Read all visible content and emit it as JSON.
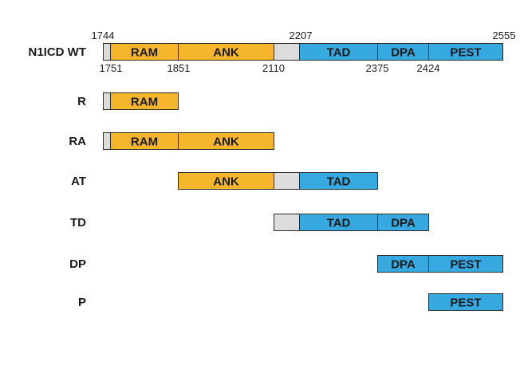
{
  "colors": {
    "linker": "#dcdcdc",
    "orange": "#f6b62b",
    "blue": "#37a9e1",
    "outline": "#2a2a2a"
  },
  "domains": {
    "RAM": "RAM",
    "ANK": "ANK",
    "TAD": "TAD",
    "DPA": "DPA",
    "PEST": "PEST"
  },
  "rows": [
    {
      "label": "N1ICD WT",
      "segments": [
        {
          "start": 1744,
          "end": 1751,
          "color": "linker",
          "text": ""
        },
        {
          "start": 1751,
          "end": 1851,
          "color": "orange",
          "text": "RAM"
        },
        {
          "start": 1851,
          "end": 2110,
          "color": "orange",
          "text": "ANK"
        },
        {
          "start": 2110,
          "end": 2207,
          "color": "linker",
          "text": ""
        },
        {
          "start": 2207,
          "end": 2375,
          "color": "blue",
          "text": "TAD"
        },
        {
          "start": 2375,
          "end": 2424,
          "color": "blue",
          "text": "DPA"
        },
        {
          "start": 2424,
          "end": 2555,
          "color": "blue",
          "text": "PEST"
        }
      ]
    },
    {
      "label": "R",
      "segments": [
        {
          "start": 1744,
          "end": 1751,
          "color": "linker",
          "text": ""
        },
        {
          "start": 1751,
          "end": 1851,
          "color": "orange",
          "text": "RAM"
        }
      ]
    },
    {
      "label": "RA",
      "segments": [
        {
          "start": 1744,
          "end": 1751,
          "color": "linker",
          "text": ""
        },
        {
          "start": 1751,
          "end": 1851,
          "color": "orange",
          "text": "RAM"
        },
        {
          "start": 1851,
          "end": 2110,
          "color": "orange",
          "text": "ANK"
        }
      ]
    },
    {
      "label": "AT",
      "segments": [
        {
          "start": 1851,
          "end": 2110,
          "color": "orange",
          "text": "ANK"
        },
        {
          "start": 2110,
          "end": 2207,
          "color": "linker",
          "text": ""
        },
        {
          "start": 2207,
          "end": 2375,
          "color": "blue",
          "text": "TAD"
        }
      ]
    },
    {
      "label": "TD",
      "segments": [
        {
          "start": 2110,
          "end": 2207,
          "color": "linker",
          "text": ""
        },
        {
          "start": 2207,
          "end": 2375,
          "color": "blue",
          "text": "TAD"
        },
        {
          "start": 2375,
          "end": 2424,
          "color": "blue",
          "text": "DPA"
        }
      ]
    },
    {
      "label": "DP",
      "segments": [
        {
          "start": 2375,
          "end": 2424,
          "color": "blue",
          "text": "DPA"
        },
        {
          "start": 2424,
          "end": 2555,
          "color": "blue",
          "text": "PEST"
        }
      ]
    },
    {
      "label": "P",
      "segments": [
        {
          "start": 2424,
          "end": 2555,
          "color": "blue",
          "text": "PEST"
        }
      ]
    }
  ],
  "positions_above": [
    "1744",
    "2207",
    "2555"
  ],
  "positions_below": [
    "1751",
    "1851",
    "2110",
    "2375",
    "2424"
  ]
}
